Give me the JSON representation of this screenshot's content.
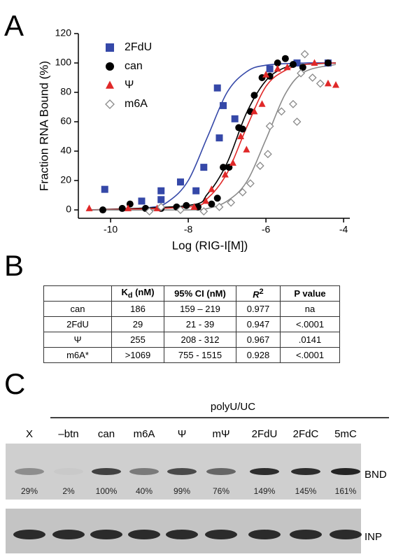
{
  "panel_labels": [
    "A",
    "B",
    "C"
  ],
  "chart_data": {
    "type": "scatter",
    "xlabel": "Log (RIG-I[M])",
    "ylabel": "Fraction RNA Bound (%)",
    "xlim": [
      -10.83,
      -3.84
    ],
    "ylim": [
      -5.7,
      120
    ],
    "xticks": [
      -10,
      -8,
      -6,
      -4
    ],
    "yticks": [
      0,
      20,
      40,
      60,
      80,
      100,
      120
    ],
    "series": [
      {
        "name": "2FdU",
        "color": "#3548a8",
        "marker": "square",
        "x": [
          -10.15,
          -9.2,
          -8.7,
          -8.7,
          -8.2,
          -7.8,
          -7.6,
          -7.2,
          -7.1,
          -7.25,
          -6.8,
          -5.9,
          -5.2,
          -4.4
        ],
        "values": [
          14,
          6,
          13,
          7,
          19,
          13,
          29,
          49,
          71,
          83,
          62,
          96,
          100,
          100
        ]
      },
      {
        "name": "can",
        "color": "#000000",
        "marker": "circle",
        "x": [
          -10.2,
          -9.7,
          -9.5,
          -9.1,
          -8.7,
          -8.3,
          -8.05,
          -7.75,
          -7.4,
          -7.25,
          -7.1,
          -6.95,
          -6.7,
          -6.6,
          -6.4,
          -6.3,
          -6.1,
          -5.9,
          -5.7,
          -5.5,
          -5.3,
          -5.05,
          -4.4
        ],
        "values": [
          0,
          1,
          4,
          1,
          1,
          2,
          3,
          2,
          4,
          8,
          29,
          29,
          56,
          55,
          67,
          78,
          90,
          91,
          100,
          103,
          99,
          97,
          100
        ]
      },
      {
        "name": "Ψ",
        "color": "#e02828",
        "marker": "triangle",
        "x": [
          -10.55,
          -9.55,
          -8.8,
          -7.85,
          -7.55,
          -7.4,
          -7.05,
          -6.85,
          -6.65,
          -6.5,
          -6.3,
          -6.1,
          -6.0,
          -5.7,
          -5.45,
          -4.75,
          -4.4,
          -4.2
        ],
        "values": [
          1,
          1,
          1,
          2,
          6,
          14,
          24,
          32,
          50,
          41,
          67,
          72,
          92,
          96,
          97,
          100,
          86,
          85
        ]
      },
      {
        "name": "m6A",
        "color": "#8a8a8a",
        "marker": "diamond",
        "x": [
          -9.0,
          -8.7,
          -8.2,
          -7.6,
          -7.2,
          -6.9,
          -6.6,
          -6.4,
          -6.15,
          -5.95,
          -5.9,
          -5.6,
          -5.3,
          -5.2,
          -5.1,
          -5.0,
          -4.8,
          -4.6
        ],
        "values": [
          -1,
          2,
          0,
          -1,
          2,
          5,
          12,
          18,
          30,
          38,
          57,
          67,
          72,
          60,
          93,
          106,
          90,
          86
        ]
      }
    ],
    "fits": [
      {
        "color": "#3548a8",
        "x": [
          -10.5,
          -9,
          -8.5,
          -8,
          -7.5,
          -7,
          -6.5,
          -6,
          -5,
          -4.2
        ],
        "values": [
          0,
          1.6,
          6,
          20,
          50,
          80,
          94,
          98.5,
          100,
          100
        ]
      },
      {
        "color": "#000000",
        "x": [
          -10.5,
          -8,
          -7.5,
          -7,
          -6.5,
          -6,
          -5.5,
          -5,
          -4.2
        ],
        "values": [
          0,
          3,
          11,
          32,
          66,
          88,
          97,
          99,
          100
        ]
      },
      {
        "color": "#e02828",
        "x": [
          -10.5,
          -8,
          -7.5,
          -7,
          -6.5,
          -6,
          -5.5,
          -5,
          -4.2
        ],
        "values": [
          0,
          2,
          8,
          25,
          56,
          84,
          95,
          99,
          100
        ]
      },
      {
        "color": "#8a8a8a",
        "x": [
          -10.5,
          -8,
          -7.5,
          -7,
          -6.5,
          -6,
          -5.5,
          -5,
          -4.2
        ],
        "values": [
          0,
          0,
          1,
          6,
          19,
          48,
          79,
          94,
          99
        ]
      }
    ]
  },
  "table": {
    "header": {
      "c0": "",
      "kd": {
        "main": "K",
        "sub": "d",
        "rest": " (nM)"
      },
      "ci": "95% CI (nM)",
      "r2": {
        "main": "R",
        "sup": "2"
      },
      "p": "P value"
    },
    "rows": [
      [
        "can",
        "186",
        "159 – 219",
        "0.977",
        "na"
      ],
      [
        "2FdU",
        "29",
        "21 - 39",
        "0.947",
        "<.0001"
      ],
      [
        "Ψ",
        "255",
        "208 - 312",
        "0.967",
        ".0141"
      ],
      [
        "m6A*",
        ">1069",
        "755 - 1515",
        "0.928",
        "<.0001"
      ]
    ]
  },
  "blot": {
    "group_label": "polyU/UC",
    "lanes": [
      "X",
      "–btn",
      "can",
      "m6A",
      "Ψ",
      "mΨ",
      "2FdU",
      "2FdC",
      "5mC"
    ],
    "percentages": [
      "29%",
      "2%",
      "100%",
      "40%",
      "99%",
      "76%",
      "149%",
      "145%",
      "161%"
    ],
    "bnd_label": "BND",
    "inp_label": "INP"
  }
}
